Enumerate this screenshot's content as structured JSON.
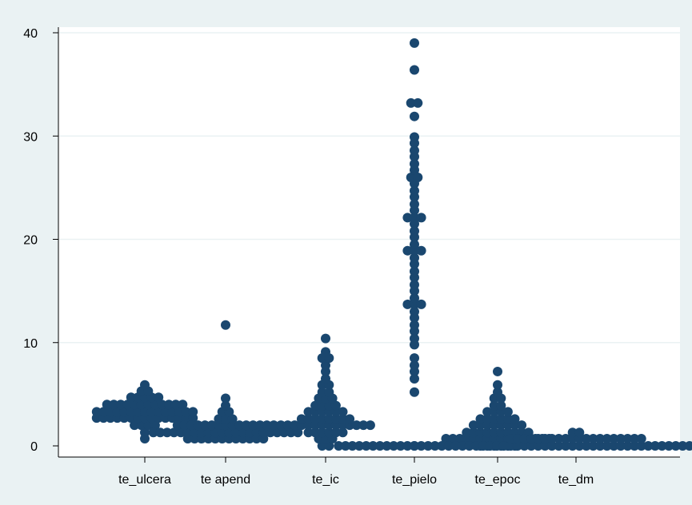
{
  "colors": {
    "background": "#eaf2f3",
    "plot_bg": "#ffffff",
    "grid": "#eaf2f3",
    "marker": "#1a476f",
    "axis": "#000000"
  },
  "chart_data": {
    "type": "scatter",
    "subtype": "dot-plot",
    "title": "",
    "xlabel": "",
    "ylabel": "",
    "ylim": [
      0,
      40
    ],
    "yticks": [
      "0",
      "10",
      "20",
      "30",
      "40"
    ],
    "grid": true,
    "legend": "none",
    "categories": [
      "te_ulcera",
      "te apend",
      "te_ic",
      "te_pielo",
      "te_epoc",
      "te_dm"
    ],
    "series": [
      {
        "category": "te_ulcera",
        "values": [
          0.7,
          1.3,
          2,
          2,
          2,
          2,
          2.7,
          2.7,
          2.7,
          2.7,
          2.7,
          2.7,
          2.7,
          2.7,
          2.7,
          2.7,
          2.7,
          2.7,
          2.7,
          2.7,
          2.7,
          3.3,
          3.3,
          3.3,
          3.3,
          3.3,
          3.3,
          3.3,
          3.3,
          3.3,
          3.3,
          3.3,
          3.3,
          3.3,
          3.3,
          3.3,
          4,
          4,
          4,
          4,
          4,
          4,
          4,
          4,
          4,
          4,
          4,
          4,
          4.7,
          4.7,
          4.7,
          4.7,
          4.7,
          5.3,
          5.3,
          5.9
        ]
      },
      {
        "category": "te apend",
        "values": [
          0.7,
          0.7,
          0.7,
          0.7,
          0.7,
          0.7,
          0.7,
          0.7,
          0.7,
          0.7,
          0.7,
          0.7,
          1.3,
          1.3,
          1.3,
          1.3,
          1.3,
          1.3,
          1.3,
          1.3,
          1.3,
          1.3,
          1.3,
          1.3,
          1.3,
          1.3,
          1.3,
          1.3,
          1.3,
          1.3,
          1.3,
          1.3,
          1.3,
          1.3,
          2,
          2,
          2,
          2,
          2,
          2,
          2,
          2,
          2,
          2,
          2,
          2,
          2,
          2,
          2,
          2.6,
          2.6,
          2.6,
          3.3,
          3.3,
          3.9,
          4.6,
          11.7
        ]
      },
      {
        "category": "te_ic",
        "values": [
          0,
          0,
          0.7,
          0.7,
          0.7,
          1.3,
          1.3,
          1.3,
          1.3,
          1.3,
          1.3,
          2,
          2,
          2,
          2,
          2,
          2,
          2,
          2,
          2,
          2,
          2,
          2,
          2,
          2,
          2.6,
          2.6,
          2.6,
          2.6,
          2.6,
          2.6,
          2.6,
          2.6,
          3.3,
          3.3,
          3.3,
          3.3,
          3.3,
          3.3,
          3.9,
          3.9,
          3.9,
          3.9,
          4.6,
          4.6,
          4.6,
          5.2,
          5.2,
          5.9,
          5.9,
          6.5,
          7.2,
          7.8,
          8.5,
          8.5,
          9.1,
          10.4
        ]
      },
      {
        "category": "te_pielo",
        "values": [
          0,
          5.2,
          6.5,
          7.2,
          7.8,
          8.5,
          9.8,
          10.4,
          11.1,
          11.7,
          12.4,
          13,
          13.7,
          13.7,
          13.7,
          14.3,
          15,
          15.6,
          16.3,
          16.9,
          17.6,
          18.2,
          18.9,
          18.9,
          18.9,
          19.5,
          20.2,
          20.8,
          21.5,
          22.1,
          22.1,
          22.1,
          22.8,
          23.4,
          24.1,
          24.7,
          25.4,
          26,
          26,
          26.7,
          27.3,
          28,
          28.6,
          29.3,
          29.9,
          31.9,
          33.2,
          33.2,
          36.4,
          39
        ]
      },
      {
        "category": "te_epoc",
        "values": [
          0,
          0,
          0,
          0,
          0,
          0,
          0.7,
          0.7,
          0.7,
          0.7,
          0.7,
          0.7,
          0.7,
          0.7,
          0.7,
          0.7,
          0.7,
          0.7,
          0.7,
          0.7,
          0.7,
          0.7,
          1.3,
          1.3,
          1.3,
          1.3,
          1.3,
          1.3,
          1.3,
          1.3,
          1.3,
          1.3,
          2,
          2,
          2,
          2,
          2,
          2,
          2,
          2,
          2.6,
          2.6,
          2.6,
          2.6,
          2.6,
          2.6,
          3.3,
          3.3,
          3.3,
          3.3,
          3.9,
          3.9,
          4.6,
          4.6,
          5.2,
          5.9,
          7.2
        ]
      },
      {
        "category": "te_dm",
        "values": [
          0,
          0,
          0,
          0,
          0,
          0,
          0,
          0,
          0,
          0,
          0,
          0,
          0,
          0,
          0,
          0,
          0,
          0,
          0,
          0,
          0,
          0,
          0,
          0,
          0,
          0,
          0,
          0,
          0,
          0,
          0,
          0,
          0,
          0,
          0,
          0,
          0,
          0,
          0,
          0,
          0,
          0,
          0,
          0,
          0,
          0,
          0,
          0,
          0,
          0,
          0,
          0,
          0,
          0,
          0,
          0,
          0,
          0,
          0,
          0,
          0,
          0,
          0,
          0,
          0,
          0,
          0,
          0,
          0,
          0,
          0.7,
          0.7,
          0.7,
          0.7,
          0.7,
          0.7,
          0.7,
          0.7,
          0.7,
          0.7,
          0.7,
          0.7,
          0.7,
          0.7,
          0.7,
          0.7,
          0.7,
          0.7,
          0.7,
          0.7,
          1.3,
          1.3
        ]
      }
    ]
  }
}
